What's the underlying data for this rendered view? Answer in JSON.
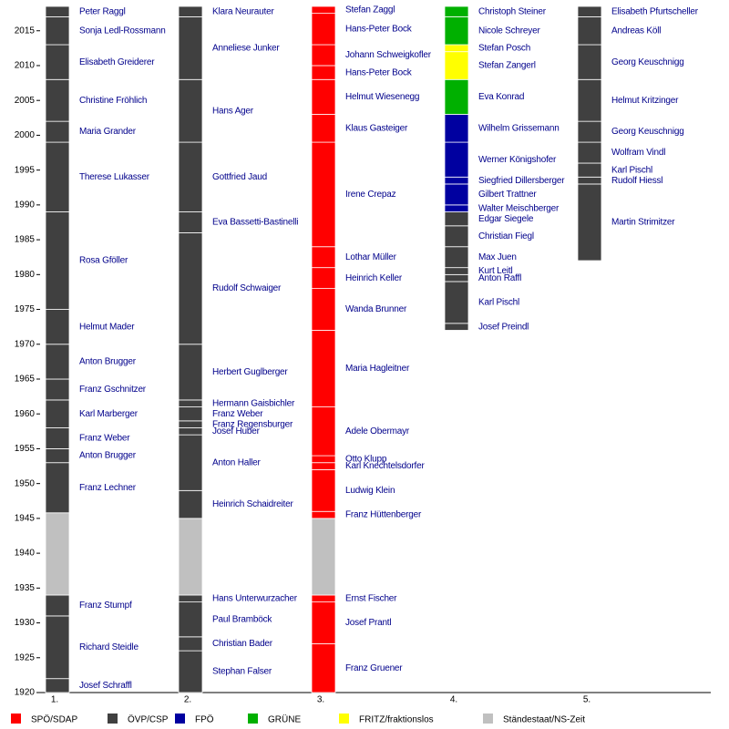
{
  "chart_data": {
    "type": "timeline",
    "ylim": [
      1920,
      2018.5
    ],
    "yticks": [
      1920,
      1925,
      1930,
      1935,
      1940,
      1945,
      1950,
      1955,
      1960,
      1965,
      1970,
      1975,
      1980,
      1985,
      1990,
      1995,
      2000,
      2005,
      2010,
      2015
    ],
    "parties": [
      {
        "name": "SPÖ/SDAP",
        "color": "#ff0000"
      },
      {
        "name": "ÖVP/CSP",
        "color": "#404040"
      },
      {
        "name": "FPÖ",
        "color": "#0000a0"
      },
      {
        "name": "GRÜNE",
        "color": "#00b000"
      },
      {
        "name": "FRITZ/fraktionslos",
        "color": "#ffff00"
      },
      {
        "name": "Ständestaat/NS-Zeit",
        "color": "#c0c0c0"
      }
    ],
    "columns": [
      {
        "label": "1.",
        "segments": [
          {
            "name": "Josef Schraffl",
            "from": 1920,
            "to": 1922,
            "party": "ÖVP/CSP"
          },
          {
            "name": "Richard Steidle",
            "from": 1922,
            "to": 1931,
            "party": "ÖVP/CSP"
          },
          {
            "name": "Franz Stumpf",
            "from": 1931,
            "to": 1934,
            "party": "ÖVP/CSP"
          },
          {
            "from": 1934,
            "to": 1945.8,
            "party": "Ständestaat/NS-Zeit"
          },
          {
            "name": "Franz Lechner",
            "from": 1945.8,
            "to": 1953,
            "party": "ÖVP/CSP"
          },
          {
            "name": "Anton Brugger",
            "from": 1953,
            "to": 1955,
            "party": "ÖVP/CSP"
          },
          {
            "name": "Franz Weber",
            "from": 1955,
            "to": 1958,
            "party": "ÖVP/CSP"
          },
          {
            "name": "Karl Marberger",
            "from": 1958,
            "to": 1962,
            "party": "ÖVP/CSP"
          },
          {
            "name": "Franz Gschnitzer",
            "from": 1962,
            "to": 1965,
            "party": "ÖVP/CSP"
          },
          {
            "name": "Anton Brugger",
            "from": 1965,
            "to": 1970,
            "party": "ÖVP/CSP"
          },
          {
            "name": "Helmut Mader",
            "from": 1970,
            "to": 1975,
            "party": "ÖVP/CSP"
          },
          {
            "name": "Rosa Gföller",
            "from": 1975,
            "to": 1989,
            "party": "ÖVP/CSP"
          },
          {
            "name": "Therese Lukasser",
            "from": 1989,
            "to": 1999,
            "party": "ÖVP/CSP"
          },
          {
            "name": "Maria Grander",
            "from": 1999,
            "to": 2002,
            "party": "ÖVP/CSP"
          },
          {
            "name": "Christine Fröhlich",
            "from": 2002,
            "to": 2008,
            "party": "ÖVP/CSP"
          },
          {
            "name": "Elisabeth Greiderer",
            "from": 2008,
            "to": 2013,
            "party": "ÖVP/CSP"
          },
          {
            "name": "Sonja Ledl-Rossmann",
            "from": 2013,
            "to": 2017,
            "party": "ÖVP/CSP"
          },
          {
            "name": "Peter Raggl",
            "from": 2017,
            "to": 2018.5,
            "party": "ÖVP/CSP"
          }
        ]
      },
      {
        "label": "2.",
        "segments": [
          {
            "name": "Stephan Falser",
            "from": 1920,
            "to": 1926,
            "party": "ÖVP/CSP"
          },
          {
            "name": "Christian Bader",
            "from": 1926,
            "to": 1928,
            "party": "ÖVP/CSP"
          },
          {
            "name": "Paul Bramböck",
            "from": 1928,
            "to": 1933,
            "party": "ÖVP/CSP"
          },
          {
            "name": "Hans Unterwurzacher",
            "from": 1933,
            "to": 1934,
            "party": "ÖVP/CSP"
          },
          {
            "from": 1934,
            "to": 1945,
            "party": "Ständestaat/NS-Zeit"
          },
          {
            "name": "Heinrich Schaidreiter",
            "from": 1945,
            "to": 1949,
            "party": "ÖVP/CSP"
          },
          {
            "name": "Anton Haller",
            "from": 1949,
            "to": 1957,
            "party": "ÖVP/CSP"
          },
          {
            "name": "Josef Huber",
            "from": 1957,
            "to": 1958,
            "party": "ÖVP/CSP"
          },
          {
            "name": "Franz Regensburger",
            "from": 1958,
            "to": 1959,
            "party": "ÖVP/CSP"
          },
          {
            "name": "Franz Weber",
            "from": 1959,
            "to": 1961,
            "party": "ÖVP/CSP"
          },
          {
            "name": "Hermann Gaisbichler",
            "from": 1961,
            "to": 1962,
            "party": "ÖVP/CSP"
          },
          {
            "name": "Herbert Guglberger",
            "from": 1962,
            "to": 1970,
            "party": "ÖVP/CSP"
          },
          {
            "name": "Rudolf Schwaiger",
            "from": 1970,
            "to": 1986,
            "party": "ÖVP/CSP"
          },
          {
            "name": "Eva Bassetti-Bastinelli",
            "from": 1986,
            "to": 1989,
            "party": "ÖVP/CSP"
          },
          {
            "name": "Gottfried Jaud",
            "from": 1989,
            "to": 1999,
            "party": "ÖVP/CSP"
          },
          {
            "name": "Hans Ager",
            "from": 1999,
            "to": 2008,
            "party": "ÖVP/CSP"
          },
          {
            "name": "Anneliese Junker",
            "from": 2008,
            "to": 2017,
            "party": "ÖVP/CSP"
          },
          {
            "name": "Klara Neurauter",
            "from": 2017,
            "to": 2018.5,
            "party": "ÖVP/CSP"
          }
        ]
      },
      {
        "label": "3.",
        "segments": [
          {
            "name": "Franz Gruener",
            "from": 1920,
            "to": 1927,
            "party": "SPÖ/SDAP"
          },
          {
            "name": "Josef Prantl",
            "from": 1927,
            "to": 1933,
            "party": "SPÖ/SDAP"
          },
          {
            "name": "Ernst Fischer",
            "from": 1933,
            "to": 1934,
            "party": "SPÖ/SDAP"
          },
          {
            "from": 1934,
            "to": 1945,
            "party": "Ständestaat/NS-Zeit"
          },
          {
            "name": "Franz Hüttenberger",
            "from": 1945,
            "to": 1946,
            "party": "SPÖ/SDAP"
          },
          {
            "name": "Ludwig Klein",
            "from": 1946,
            "to": 1952,
            "party": "SPÖ/SDAP"
          },
          {
            "name": "Karl Knechtelsdorfer",
            "from": 1952,
            "to": 1953,
            "party": "SPÖ/SDAP"
          },
          {
            "name": "Otto Klupp",
            "from": 1953,
            "to": 1954,
            "party": "SPÖ/SDAP"
          },
          {
            "name": "Adele Obermayr",
            "from": 1954,
            "to": 1961,
            "party": "SPÖ/SDAP"
          },
          {
            "name": "Maria Hagleitner",
            "from": 1961,
            "to": 1972,
            "party": "SPÖ/SDAP"
          },
          {
            "name": "Wanda Brunner",
            "from": 1972,
            "to": 1978,
            "party": "SPÖ/SDAP"
          },
          {
            "name": "Heinrich Keller",
            "from": 1978,
            "to": 1981,
            "party": "SPÖ/SDAP"
          },
          {
            "name": "Lothar Müller",
            "from": 1981,
            "to": 1984,
            "party": "SPÖ/SDAP"
          },
          {
            "name": "Irene Crepaz",
            "from": 1984,
            "to": 1999,
            "party": "SPÖ/SDAP"
          },
          {
            "name": "Klaus Gasteiger",
            "from": 1999,
            "to": 2003,
            "party": "SPÖ/SDAP"
          },
          {
            "name": "Helmut Wiesenegg",
            "from": 2003,
            "to": 2008,
            "party": "SPÖ/SDAP"
          },
          {
            "name": "Hans-Peter Bock",
            "from": 2008,
            "to": 2010,
            "party": "SPÖ/SDAP"
          },
          {
            "name": "Johann Schweigkofler",
            "from": 2010,
            "to": 2013,
            "party": "SPÖ/SDAP"
          },
          {
            "name": "Hans-Peter Bock",
            "from": 2013,
            "to": 2017.5,
            "party": "SPÖ/SDAP"
          },
          {
            "name": "Stefan Zaggl",
            "from": 2017.5,
            "to": 2018.5,
            "party": "SPÖ/SDAP"
          }
        ]
      },
      {
        "label": "4.",
        "segments": [
          {
            "name": "Josef Preindl",
            "from": 1972,
            "to": 1973,
            "party": "ÖVP/CSP"
          },
          {
            "name": "Karl Pischl",
            "from": 1973,
            "to": 1979,
            "party": "ÖVP/CSP"
          },
          {
            "name": "Anton Raffl",
            "from": 1979,
            "to": 1980,
            "party": "ÖVP/CSP"
          },
          {
            "name": "Kurt Leitl",
            "from": 1980,
            "to": 1981,
            "party": "ÖVP/CSP"
          },
          {
            "name": "Max Juen",
            "from": 1981,
            "to": 1984,
            "party": "ÖVP/CSP"
          },
          {
            "name": "Christian Fiegl",
            "from": 1984,
            "to": 1987,
            "party": "ÖVP/CSP"
          },
          {
            "name": "Edgar Siegele",
            "from": 1987,
            "to": 1989,
            "party": "ÖVP/CSP"
          },
          {
            "name": "Walter Meischberger",
            "from": 1989,
            "to": 1990,
            "party": "FPÖ"
          },
          {
            "name": "Gilbert Trattner",
            "from": 1990,
            "to": 1993,
            "party": "FPÖ"
          },
          {
            "name": "Siegfried Dillersberger",
            "from": 1993,
            "to": 1994,
            "party": "FPÖ"
          },
          {
            "name": "Werner Königshofer",
            "from": 1994,
            "to": 1999,
            "party": "FPÖ"
          },
          {
            "name": "Wilhelm Grissemann",
            "from": 1999,
            "to": 2003,
            "party": "FPÖ"
          },
          {
            "name": "Eva Konrad",
            "from": 2003,
            "to": 2008,
            "party": "GRÜNE"
          },
          {
            "name": "Stefan Zangerl",
            "from": 2008,
            "to": 2012,
            "party": "FRITZ/fraktionslos"
          },
          {
            "name": "Stefan Posch",
            "from": 2012,
            "to": 2013,
            "party": "FRITZ/fraktionslos"
          },
          {
            "name": "Nicole Schreyer",
            "from": 2013,
            "to": 2017,
            "party": "GRÜNE"
          },
          {
            "name": "Christoph Steiner",
            "from": 2017,
            "to": 2018.5,
            "party": "GRÜNE"
          }
        ]
      },
      {
        "label": "5.",
        "segments": [
          {
            "name": "Martin Strimitzer",
            "from": 1982,
            "to": 1993,
            "party": "ÖVP/CSP"
          },
          {
            "name": "Rudolf Hiessl",
            "from": 1993,
            "to": 1994,
            "party": "ÖVP/CSP"
          },
          {
            "name": "Karl Pischl",
            "from": 1994,
            "to": 1996,
            "party": "ÖVP/CSP"
          },
          {
            "name": "Wolfram Vindl",
            "from": 1996,
            "to": 1999,
            "party": "ÖVP/CSP"
          },
          {
            "name": "Georg Keuschnigg",
            "from": 1999,
            "to": 2002,
            "party": "ÖVP/CSP"
          },
          {
            "name": "Helmut Kritzinger",
            "from": 2002,
            "to": 2008,
            "party": "ÖVP/CSP"
          },
          {
            "name": "Georg Keuschnigg",
            "from": 2008,
            "to": 2013,
            "party": "ÖVP/CSP"
          },
          {
            "name": "Andreas Köll",
            "from": 2013,
            "to": 2017,
            "party": "ÖVP/CSP"
          },
          {
            "name": "Elisabeth Pfurtscheller",
            "from": 2017,
            "to": 2018.5,
            "party": "ÖVP/CSP"
          }
        ]
      }
    ]
  }
}
